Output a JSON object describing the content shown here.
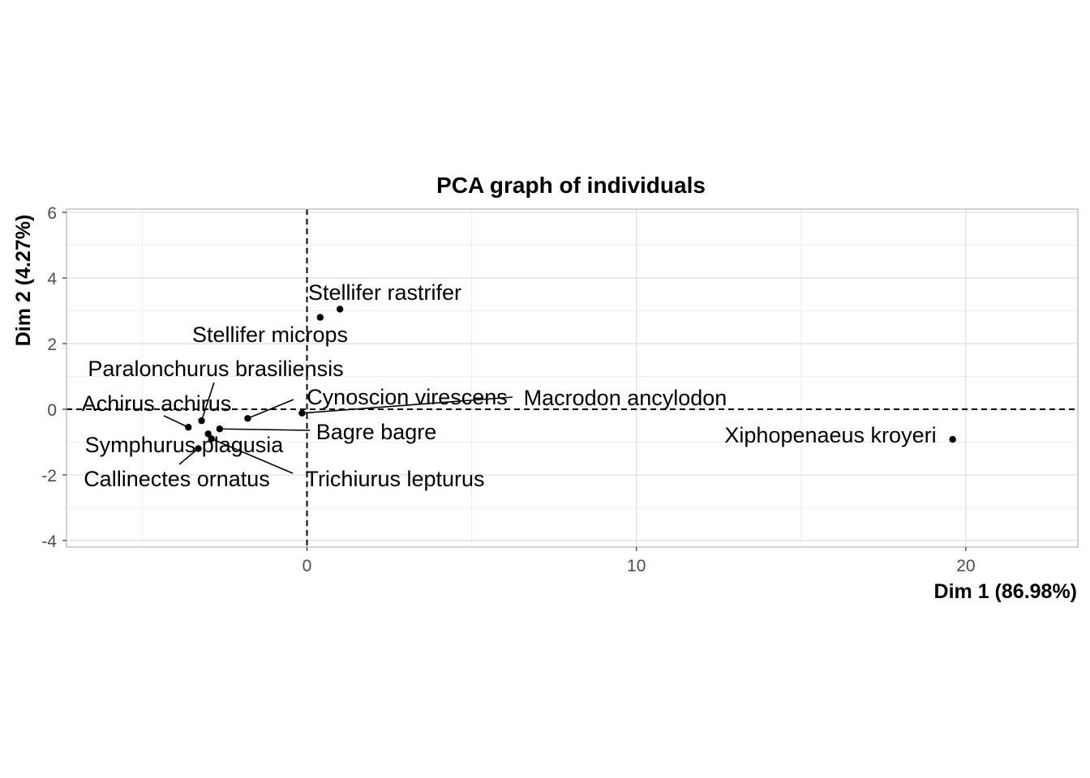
{
  "chart_data": {
    "type": "scatter",
    "title": "PCA graph of individuals",
    "xlabel": "Dim 1 (86.98%)",
    "ylabel": "Dim 2 (4.27%)",
    "xlim": [
      -7.3,
      23.4
    ],
    "ylim": [
      -4.2,
      6.1
    ],
    "xticks": [
      0,
      10,
      20
    ],
    "yticks": [
      -4,
      -2,
      0,
      2,
      4,
      6
    ],
    "grid": true,
    "reference_lines": {
      "x": 0,
      "y": 0,
      "style": "dashed"
    },
    "points": [
      {
        "label": "Stellifer rastrifer",
        "x": 1.0,
        "y": 3.05
      },
      {
        "label": "Stellifer microps",
        "x": 0.4,
        "y": 2.8
      },
      {
        "label": "Paralonchurus brasiliensis",
        "x": -3.2,
        "y": -0.35
      },
      {
        "label": "Achirus achirus",
        "x": -3.6,
        "y": -0.55
      },
      {
        "label": "Cynoscion virescens",
        "x": -1.8,
        "y": -0.28
      },
      {
        "label": "Macrodon ancylodon",
        "x": -0.15,
        "y": -0.12
      },
      {
        "label": "Bagre bagre",
        "x": -2.65,
        "y": -0.6
      },
      {
        "label": "Symphurus plagusia",
        "x": -3.0,
        "y": -0.75
      },
      {
        "label": "Callinectes ornatus",
        "x": -3.3,
        "y": -1.2
      },
      {
        "label": "Trichiurus lepturus",
        "x": -2.9,
        "y": -0.9
      },
      {
        "label": "Xiphopenaeus kroyeri",
        "x": 19.6,
        "y": -0.92
      }
    ]
  }
}
